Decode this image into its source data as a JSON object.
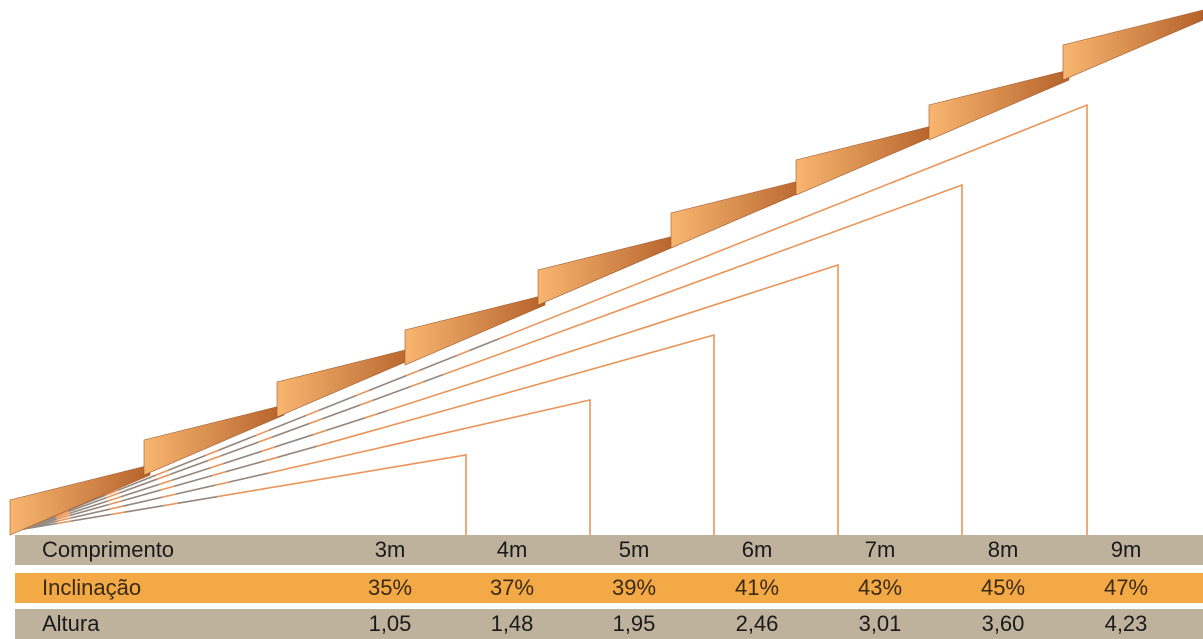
{
  "colors": {
    "roof_light": "#f7b26a",
    "roof_dark": "#b8672a",
    "line_orange": "#e9955a",
    "line_grey": "#8a8a8a",
    "row_grey": "#bfb29d",
    "row_orange": "#f3a946"
  },
  "table": {
    "rows": [
      {
        "label": "Comprimento",
        "values": [
          "3m",
          "4m",
          "5m",
          "6m",
          "7m",
          "8m",
          "9m"
        ]
      },
      {
        "label": "Inclinação",
        "values": [
          "35%",
          "37%",
          "39%",
          "41%",
          "43%",
          "45%",
          "47%"
        ]
      },
      {
        "label": "Altura",
        "values": [
          "1,05",
          "1,48",
          "1,95",
          "2,46",
          "3,01",
          "3,60",
          "4,23"
        ]
      }
    ]
  },
  "chart_data": {
    "type": "table",
    "categories": [
      "3m",
      "4m",
      "5m",
      "6m",
      "7m",
      "8m",
      "9m"
    ],
    "series": [
      {
        "name": "Comprimento",
        "values": [
          3,
          4,
          5,
          6,
          7,
          8,
          9
        ]
      },
      {
        "name": "Inclinação",
        "values": [
          35,
          37,
          39,
          41,
          43,
          45,
          47
        ]
      },
      {
        "name": "Altura",
        "values": [
          1.05,
          1.48,
          1.95,
          2.46,
          3.01,
          3.6,
          4.23
        ]
      }
    ]
  }
}
